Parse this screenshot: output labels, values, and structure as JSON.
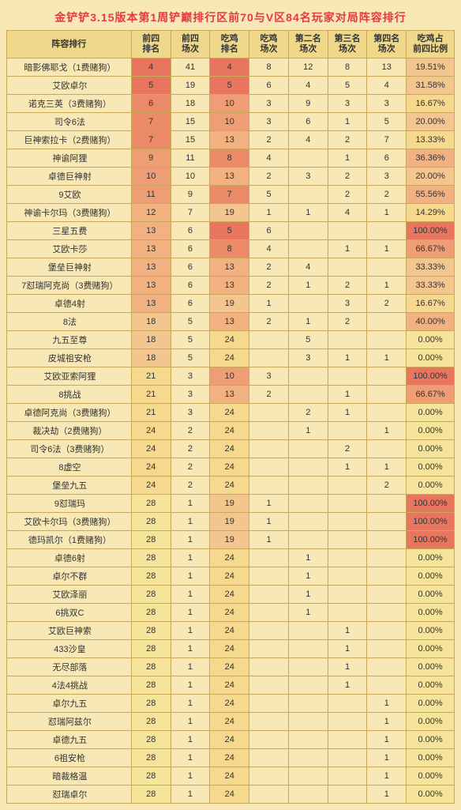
{
  "title": "金铲铲3.15版本第1周铲巅排行区前70与V区84名玩家对局阵容排行",
  "columns": [
    "阵容排行",
    "前四\n排名",
    "前四\n场次",
    "吃鸡\n排名",
    "吃鸡\n场次",
    "第二名\n场次",
    "第三名\n场次",
    "第四名\n场次",
    "吃鸡占\n前四比例"
  ],
  "colors": {
    "background": "#f7e8b5",
    "header_bg": "#f0d88a",
    "border": "#c9a85a",
    "title": "#e63946",
    "scale": [
      {
        "max": 5,
        "bg": "#e8765e"
      },
      {
        "max": 8,
        "bg": "#eb8a66"
      },
      {
        "max": 11,
        "bg": "#ee9d74"
      },
      {
        "max": 14,
        "bg": "#f1b181"
      },
      {
        "max": 19,
        "bg": "#f3c58f"
      },
      {
        "max": 24,
        "bg": "#f6d98f"
      },
      {
        "max": 99,
        "bg": "#f6e49a"
      }
    ],
    "pct_scale": [
      {
        "min": 90,
        "bg": "#e8765e"
      },
      {
        "min": 60,
        "bg": "#ee9d74"
      },
      {
        "min": 35,
        "bg": "#f1b181"
      },
      {
        "min": 18,
        "bg": "#f3c58f"
      },
      {
        "min": 10,
        "bg": "#f6d98f"
      },
      {
        "min": 0,
        "bg": "#f6e49a"
      }
    ]
  },
  "rows": [
    {
      "name": "暗影佛耶戈（1费赌狗）",
      "r1": 4,
      "c1": 41,
      "r2": 4,
      "c2": 8,
      "n2": 12,
      "n3": 8,
      "n4": 13,
      "pct": "19.51%"
    },
    {
      "name": "艾欧卓尔",
      "r1": 5,
      "c1": 19,
      "r2": 5,
      "c2": 6,
      "n2": 4,
      "n3": 5,
      "n4": 4,
      "pct": "31.58%"
    },
    {
      "name": "诺克三英（3费赌狗）",
      "r1": 6,
      "c1": 18,
      "r2": 10,
      "c2": 3,
      "n2": 9,
      "n3": 3,
      "n4": 3,
      "pct": "16.67%"
    },
    {
      "name": "司令6法",
      "r1": 7,
      "c1": 15,
      "r2": 10,
      "c2": 3,
      "n2": 6,
      "n3": 1,
      "n4": 5,
      "pct": "20.00%"
    },
    {
      "name": "巨神索拉卡（2费赌狗）",
      "r1": 7,
      "c1": 15,
      "r2": 13,
      "c2": 2,
      "n2": 4,
      "n3": 2,
      "n4": 7,
      "pct": "13.33%"
    },
    {
      "name": "神谕阿狸",
      "r1": 9,
      "c1": 11,
      "r2": 8,
      "c2": 4,
      "n2": "",
      "n3": 1,
      "n4": 6,
      "pct": "36.36%"
    },
    {
      "name": "卓德巨神射",
      "r1": 10,
      "c1": 10,
      "r2": 13,
      "c2": 2,
      "n2": 3,
      "n3": 2,
      "n4": 3,
      "pct": "20.00%"
    },
    {
      "name": "9艾欧",
      "r1": 11,
      "c1": 9,
      "r2": 7,
      "c2": 5,
      "n2": "",
      "n3": 2,
      "n4": 2,
      "pct": "55.56%"
    },
    {
      "name": "神谕卡尔玛（3费赌狗）",
      "r1": 12,
      "c1": 7,
      "r2": 19,
      "c2": 1,
      "n2": 1,
      "n3": 4,
      "n4": 1,
      "pct": "14.29%"
    },
    {
      "name": "三星五费",
      "r1": 13,
      "c1": 6,
      "r2": 5,
      "c2": 6,
      "n2": "",
      "n3": "",
      "n4": "",
      "pct": "100.00%"
    },
    {
      "name": "艾欧卡莎",
      "r1": 13,
      "c1": 6,
      "r2": 8,
      "c2": 4,
      "n2": "",
      "n3": 1,
      "n4": 1,
      "pct": "66.67%"
    },
    {
      "name": "堡垒巨神射",
      "r1": 13,
      "c1": 6,
      "r2": 13,
      "c2": 2,
      "n2": 4,
      "n3": "",
      "n4": "",
      "pct": "33.33%"
    },
    {
      "name": "7怼瑞阿克尚（3费赌狗）",
      "r1": 13,
      "c1": 6,
      "r2": 13,
      "c2": 2,
      "n2": 1,
      "n3": 2,
      "n4": 1,
      "pct": "33.33%"
    },
    {
      "name": "卓德4射",
      "r1": 13,
      "c1": 6,
      "r2": 19,
      "c2": 1,
      "n2": "",
      "n3": 3,
      "n4": 2,
      "pct": "16.67%"
    },
    {
      "name": "8法",
      "r1": 18,
      "c1": 5,
      "r2": 13,
      "c2": 2,
      "n2": 1,
      "n3": 2,
      "n4": "",
      "pct": "40.00%"
    },
    {
      "name": "九五至尊",
      "r1": 18,
      "c1": 5,
      "r2": 24,
      "c2": "",
      "n2": 5,
      "n3": "",
      "n4": "",
      "pct": "0.00%"
    },
    {
      "name": "皮城祖安枪",
      "r1": 18,
      "c1": 5,
      "r2": 24,
      "c2": "",
      "n2": 3,
      "n3": 1,
      "n4": 1,
      "pct": "0.00%"
    },
    {
      "name": "艾欧亚索阿狸",
      "r1": 21,
      "c1": 3,
      "r2": 10,
      "c2": 3,
      "n2": "",
      "n3": "",
      "n4": "",
      "pct": "100.00%"
    },
    {
      "name": "8挑战",
      "r1": 21,
      "c1": 3,
      "r2": 13,
      "c2": 2,
      "n2": "",
      "n3": 1,
      "n4": "",
      "pct": "66.67%"
    },
    {
      "name": "卓德阿克尚（3费赌狗）",
      "r1": 21,
      "c1": 3,
      "r2": 24,
      "c2": "",
      "n2": 2,
      "n3": 1,
      "n4": "",
      "pct": "0.00%"
    },
    {
      "name": "裁决劫（2费赌狗）",
      "r1": 24,
      "c1": 2,
      "r2": 24,
      "c2": "",
      "n2": 1,
      "n3": "",
      "n4": 1,
      "pct": "0.00%"
    },
    {
      "name": "司令6法（3费赌狗）",
      "r1": 24,
      "c1": 2,
      "r2": 24,
      "c2": "",
      "n2": "",
      "n3": 2,
      "n4": "",
      "pct": "0.00%"
    },
    {
      "name": "8虚空",
      "r1": 24,
      "c1": 2,
      "r2": 24,
      "c2": "",
      "n2": "",
      "n3": 1,
      "n4": 1,
      "pct": "0.00%"
    },
    {
      "name": "堡垒九五",
      "r1": 24,
      "c1": 2,
      "r2": 24,
      "c2": "",
      "n2": "",
      "n3": "",
      "n4": 2,
      "pct": "0.00%"
    },
    {
      "name": "9怼瑞玛",
      "r1": 28,
      "c1": 1,
      "r2": 19,
      "c2": 1,
      "n2": "",
      "n3": "",
      "n4": "",
      "pct": "100.00%"
    },
    {
      "name": "艾欧卡尔玛（3费赌狗）",
      "r1": 28,
      "c1": 1,
      "r2": 19,
      "c2": 1,
      "n2": "",
      "n3": "",
      "n4": "",
      "pct": "100.00%"
    },
    {
      "name": "德玛凯尔（1费赌狗）",
      "r1": 28,
      "c1": 1,
      "r2": 19,
      "c2": 1,
      "n2": "",
      "n3": "",
      "n4": "",
      "pct": "100.00%"
    },
    {
      "name": "卓德6射",
      "r1": 28,
      "c1": 1,
      "r2": 24,
      "c2": "",
      "n2": 1,
      "n3": "",
      "n4": "",
      "pct": "0.00%"
    },
    {
      "name": "卓尔不群",
      "r1": 28,
      "c1": 1,
      "r2": 24,
      "c2": "",
      "n2": 1,
      "n3": "",
      "n4": "",
      "pct": "0.00%"
    },
    {
      "name": "艾欧泽丽",
      "r1": 28,
      "c1": 1,
      "r2": 24,
      "c2": "",
      "n2": 1,
      "n3": "",
      "n4": "",
      "pct": "0.00%"
    },
    {
      "name": "6挑双C",
      "r1": 28,
      "c1": 1,
      "r2": 24,
      "c2": "",
      "n2": 1,
      "n3": "",
      "n4": "",
      "pct": "0.00%"
    },
    {
      "name": "艾欧巨神索",
      "r1": 28,
      "c1": 1,
      "r2": 24,
      "c2": "",
      "n2": "",
      "n3": 1,
      "n4": "",
      "pct": "0.00%"
    },
    {
      "name": "433沙皇",
      "r1": 28,
      "c1": 1,
      "r2": 24,
      "c2": "",
      "n2": "",
      "n3": 1,
      "n4": "",
      "pct": "0.00%"
    },
    {
      "name": "无尽部落",
      "r1": 28,
      "c1": 1,
      "r2": 24,
      "c2": "",
      "n2": "",
      "n3": 1,
      "n4": "",
      "pct": "0.00%"
    },
    {
      "name": "4法4挑战",
      "r1": 28,
      "c1": 1,
      "r2": 24,
      "c2": "",
      "n2": "",
      "n3": 1,
      "n4": "",
      "pct": "0.00%"
    },
    {
      "name": "卓尔九五",
      "r1": 28,
      "c1": 1,
      "r2": 24,
      "c2": "",
      "n2": "",
      "n3": "",
      "n4": 1,
      "pct": "0.00%"
    },
    {
      "name": "怼瑞阿兹尔",
      "r1": 28,
      "c1": 1,
      "r2": 24,
      "c2": "",
      "n2": "",
      "n3": "",
      "n4": 1,
      "pct": "0.00%"
    },
    {
      "name": "卓德九五",
      "r1": 28,
      "c1": 1,
      "r2": 24,
      "c2": "",
      "n2": "",
      "n3": "",
      "n4": 1,
      "pct": "0.00%"
    },
    {
      "name": "6祖安枪",
      "r1": 28,
      "c1": 1,
      "r2": 24,
      "c2": "",
      "n2": "",
      "n3": "",
      "n4": 1,
      "pct": "0.00%"
    },
    {
      "name": "暗裁格温",
      "r1": 28,
      "c1": 1,
      "r2": 24,
      "c2": "",
      "n2": "",
      "n3": "",
      "n4": 1,
      "pct": "0.00%"
    },
    {
      "name": "怼瑞卓尔",
      "r1": 28,
      "c1": 1,
      "r2": 24,
      "c2": "",
      "n2": "",
      "n3": "",
      "n4": 1,
      "pct": "0.00%"
    }
  ]
}
